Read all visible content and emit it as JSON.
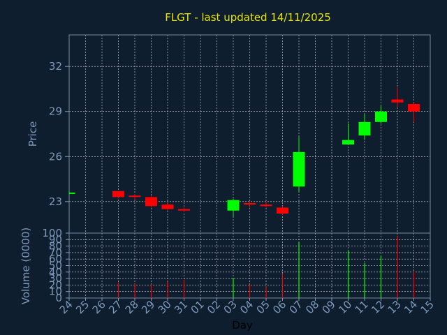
{
  "chart_data": [
    {
      "type": "candlestick",
      "title": "FLGT - last updated 14/11/2025",
      "ylabel": "Price",
      "ylim": [
        20.9,
        34.1
      ],
      "yticks": [
        23,
        26,
        29,
        32
      ],
      "grid": true,
      "categories": [
        "24",
        "25",
        "26",
        "27",
        "28",
        "29",
        "30",
        "31",
        "01",
        "02",
        "03",
        "04",
        "05",
        "06",
        "07",
        "08",
        "09",
        "10",
        "11",
        "12",
        "13",
        "14",
        "15"
      ],
      "candles": [
        {
          "day": "24",
          "open": 23.6,
          "close": 23.6,
          "high": 23.7,
          "low": 23.5,
          "dir": "up"
        },
        {
          "day": "27",
          "open": 23.7,
          "close": 23.3,
          "high": 23.7,
          "low": 23.2,
          "dir": "down"
        },
        {
          "day": "28",
          "open": 23.4,
          "close": 23.4,
          "high": 23.5,
          "low": 23.1,
          "dir": "down"
        },
        {
          "day": "29",
          "open": 23.3,
          "close": 22.7,
          "high": 23.4,
          "low": 22.6,
          "dir": "down"
        },
        {
          "day": "30",
          "open": 22.8,
          "close": 22.5,
          "high": 22.9,
          "low": 22.4,
          "dir": "down"
        },
        {
          "day": "31",
          "open": 22.5,
          "close": 22.4,
          "high": 22.6,
          "low": 22.3,
          "dir": "down"
        },
        {
          "day": "03",
          "open": 22.4,
          "close": 23.1,
          "high": 23.2,
          "low": 22.0,
          "dir": "up"
        },
        {
          "day": "04",
          "open": 22.9,
          "close": 22.8,
          "high": 23.0,
          "low": 22.6,
          "dir": "down"
        },
        {
          "day": "05",
          "open": 22.8,
          "close": 22.7,
          "high": 23.0,
          "low": 22.6,
          "dir": "down"
        },
        {
          "day": "06",
          "open": 22.6,
          "close": 22.2,
          "high": 22.7,
          "low": 22.1,
          "dir": "down"
        },
        {
          "day": "07",
          "open": 24.0,
          "close": 26.3,
          "high": 27.3,
          "low": 23.6,
          "dir": "up"
        },
        {
          "day": "10",
          "open": 26.8,
          "close": 27.1,
          "high": 28.2,
          "low": 26.8,
          "dir": "up"
        },
        {
          "day": "11",
          "open": 27.4,
          "close": 28.3,
          "high": 28.8,
          "low": 27.1,
          "dir": "up"
        },
        {
          "day": "12",
          "open": 28.3,
          "close": 29.0,
          "high": 29.4,
          "low": 28.2,
          "dir": "up"
        },
        {
          "day": "13",
          "open": 29.8,
          "close": 29.6,
          "high": 30.6,
          "low": 29.3,
          "dir": "down"
        },
        {
          "day": "14",
          "open": 29.5,
          "close": 29.0,
          "high": 29.6,
          "low": 28.3,
          "dir": "down"
        }
      ],
      "colors": {
        "up": "#00ff00",
        "down": "#ff0000",
        "background": "#0f1e2f",
        "grid": "#dddddd",
        "axis_text": "#7f99bb",
        "title": "#e6e600"
      }
    },
    {
      "type": "bar",
      "ylabel": "Volume (0000)",
      "xlabel": "Day",
      "ylim": [
        0,
        100
      ],
      "yticks": [
        0,
        10,
        20,
        30,
        40,
        50,
        60,
        70,
        80,
        90,
        100
      ],
      "categories": [
        "24",
        "25",
        "26",
        "27",
        "28",
        "29",
        "30",
        "31",
        "01",
        "02",
        "03",
        "04",
        "05",
        "06",
        "07",
        "08",
        "09",
        "10",
        "11",
        "12",
        "13",
        "14",
        "15"
      ],
      "values": [
        {
          "day": "24",
          "volume": 0,
          "dir": "up"
        },
        {
          "day": "27",
          "volume": 24,
          "dir": "down"
        },
        {
          "day": "28",
          "volume": 22,
          "dir": "down"
        },
        {
          "day": "29",
          "volume": 21,
          "dir": "down"
        },
        {
          "day": "30",
          "volume": 25,
          "dir": "down"
        },
        {
          "day": "31",
          "volume": 28,
          "dir": "down"
        },
        {
          "day": "03",
          "volume": 31,
          "dir": "up"
        },
        {
          "day": "04",
          "volume": 21,
          "dir": "down"
        },
        {
          "day": "05",
          "volume": 18,
          "dir": "down"
        },
        {
          "day": "06",
          "volume": 38,
          "dir": "down"
        },
        {
          "day": "07",
          "volume": 86,
          "dir": "up"
        },
        {
          "day": "10",
          "volume": 73,
          "dir": "up"
        },
        {
          "day": "11",
          "volume": 54,
          "dir": "up"
        },
        {
          "day": "12",
          "volume": 65,
          "dir": "up"
        },
        {
          "day": "13",
          "volume": 95,
          "dir": "down"
        },
        {
          "day": "14",
          "volume": 41,
          "dir": "down"
        }
      ]
    }
  ]
}
